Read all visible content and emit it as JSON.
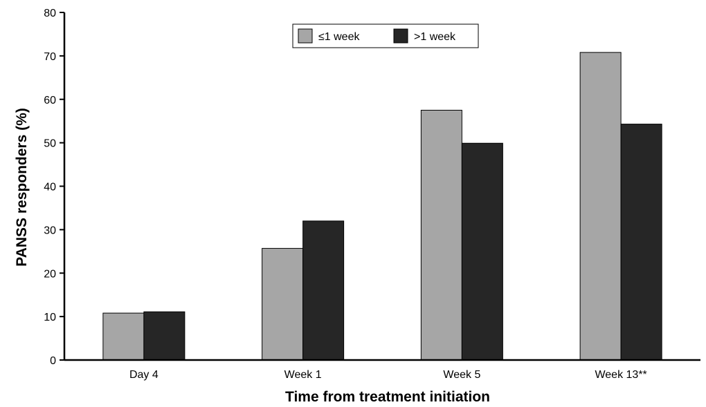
{
  "chart_data": {
    "type": "bar",
    "title": "",
    "xlabel": "Time from treatment initiation",
    "ylabel": "PANSS responders (%)",
    "ylim": [
      0,
      80
    ],
    "yticks": [
      0,
      10,
      20,
      30,
      40,
      50,
      60,
      70,
      80
    ],
    "categories": [
      "Day 4",
      "Week 1",
      "Week 5",
      "Week 13**"
    ],
    "series": [
      {
        "name": "≤1 week",
        "color": "#a6a6a6",
        "values": [
          10.8,
          25.7,
          57.5,
          70.8
        ]
      },
      {
        "name": ">1 week",
        "color": "#262626",
        "values": [
          11.1,
          32.0,
          49.9,
          54.3
        ]
      }
    ],
    "legend": "top-center",
    "grid": false
  }
}
